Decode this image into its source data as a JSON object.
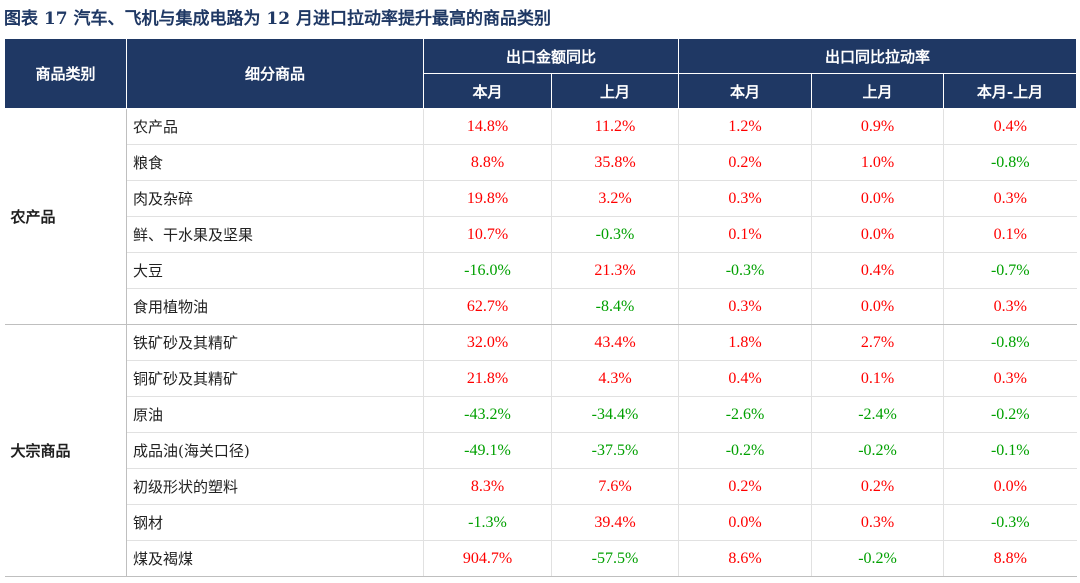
{
  "title": "图表 17    汽车、飞机与集成电路为 12 月进口拉动率提升最高的商品类别",
  "colors": {
    "header_bg": "#1f3864",
    "positive": "#ff0000",
    "negative": "#00a000"
  },
  "header": {
    "category": "商品类别",
    "subcategory": "细分商品",
    "group1": "出口金额同比",
    "group2": "出口同比拉动率",
    "cols": [
      "本月",
      "上月",
      "本月",
      "上月",
      "本月-上月"
    ]
  },
  "groups": [
    {
      "name": "农产品",
      "rows": [
        {
          "name": "农产品",
          "values": [
            "14.8%",
            "11.2%",
            "1.2%",
            "0.9%",
            "0.4%"
          ]
        },
        {
          "name": "粮食",
          "values": [
            "8.8%",
            "35.8%",
            "0.2%",
            "1.0%",
            "-0.8%"
          ]
        },
        {
          "name": "肉及杂碎",
          "values": [
            "19.8%",
            "3.2%",
            "0.3%",
            "0.0%",
            "0.3%"
          ]
        },
        {
          "name": "鲜、干水果及坚果",
          "values": [
            "10.7%",
            "-0.3%",
            "0.1%",
            "0.0%",
            "0.1%"
          ]
        },
        {
          "name": "大豆",
          "values": [
            "-16.0%",
            "21.3%",
            "-0.3%",
            "0.4%",
            "-0.7%"
          ]
        },
        {
          "name": "食用植物油",
          "values": [
            "62.7%",
            "-8.4%",
            "0.3%",
            "0.0%",
            "0.3%"
          ]
        }
      ]
    },
    {
      "name": "大宗商品",
      "rows": [
        {
          "name": "铁矿砂及其精矿",
          "values": [
            "32.0%",
            "43.4%",
            "1.8%",
            "2.7%",
            "-0.8%"
          ]
        },
        {
          "name": "铜矿砂及其精矿",
          "values": [
            "21.8%",
            "4.3%",
            "0.4%",
            "0.1%",
            "0.3%"
          ]
        },
        {
          "name": "原油",
          "values": [
            "-43.2%",
            "-34.4%",
            "-2.6%",
            "-2.4%",
            "-0.2%"
          ]
        },
        {
          "name": "成品油(海关口径)",
          "values": [
            "-49.1%",
            "-37.5%",
            "-0.2%",
            "-0.2%",
            "-0.1%"
          ]
        },
        {
          "name": "初级形状的塑料",
          "values": [
            "8.3%",
            "7.6%",
            "0.2%",
            "0.2%",
            "0.0%"
          ]
        },
        {
          "name": "钢材",
          "values": [
            "-1.3%",
            "39.4%",
            "0.0%",
            "0.3%",
            "-0.3%"
          ]
        },
        {
          "name": "煤及褐煤",
          "values": [
            "904.7%",
            "-57.5%",
            "8.6%",
            "-0.2%",
            "8.8%"
          ]
        }
      ]
    }
  ]
}
